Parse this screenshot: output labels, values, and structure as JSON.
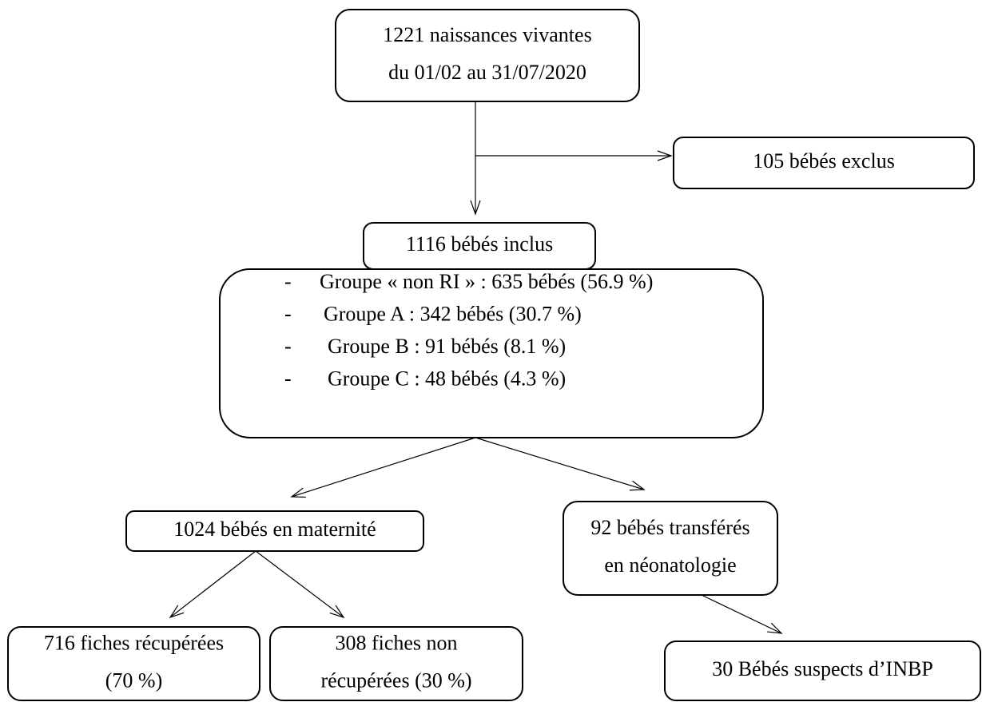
{
  "nodes": [
    {
      "lines": [
        "1221 naissances vivantes",
        "du 01/02 au 31/07/2020"
      ]
    },
    {
      "lines": [
        "105 bébés exclus"
      ]
    },
    {
      "lines": [
        "1116 bébés inclus"
      ]
    },
    {
      "bullet": "-",
      "items": [
        "Groupe « non RI » : 635 bébés (56.9 %)",
        "Groupe A : 342 bébés (30.7 %)",
        "Groupe B : 91 bébés (8.1 %)",
        "Groupe C : 48 bébés (4.3 %)"
      ]
    },
    {
      "lines": [
        "1024 bébés en maternité"
      ]
    },
    {
      "lines": [
        "92 bébés transférés",
        "en néonatologie"
      ]
    },
    {
      "lines": [
        "716 fiches récupérées",
        "(70 %)"
      ]
    },
    {
      "lines": [
        "308 fiches non",
        "récupérées (30 %)"
      ]
    },
    {
      "lines": [
        "30 Bébés suspects d’INBP"
      ]
    }
  ]
}
